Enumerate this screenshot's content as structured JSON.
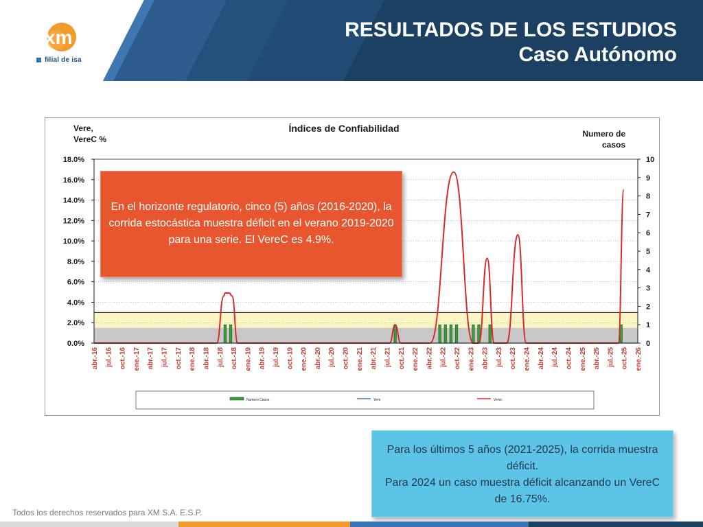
{
  "header": {
    "title_line1": "RESULTADOS DE LOS ESTUDIOS",
    "title_line2": "Caso Autónomo",
    "logo_text": "xm",
    "logo_sub": "filial de isa",
    "colors": {
      "dark": "#1b4062",
      "mid": "#2b5c8c",
      "light": "#3f78b0",
      "accent": "#f39a2c"
    }
  },
  "chart_data": {
    "type": "line",
    "title": "Índices de Confiabilidad",
    "ylabel_left_line1": "Vere,",
    "ylabel_left_line2": "VereC %",
    "ylabel_right_line1": "Numero de",
    "ylabel_right_line2": "casos",
    "ylim_left": [
      0,
      18
    ],
    "ylim_right": [
      0,
      10
    ],
    "left_ticks": [
      "0.0%",
      "2.0%",
      "4.0%",
      "6.0%",
      "8.0%",
      "10.0%",
      "12.0%",
      "14.0%",
      "16.0%",
      "18.0%"
    ],
    "right_ticks": [
      "0",
      "1",
      "2",
      "3",
      "4",
      "5",
      "6",
      "7",
      "8",
      "9",
      "10"
    ],
    "categories": [
      "abr.-16",
      "jul.-16",
      "oct.-16",
      "ene.-17",
      "abr.-17",
      "jul.-17",
      "oct.-17",
      "ene.-18",
      "abr.-18",
      "jul.-18",
      "oct.-18",
      "ene.-19",
      "abr.-19",
      "jul.-19",
      "oct.-19",
      "ene.-20",
      "abr.-20",
      "jul.-20",
      "oct.-20",
      "ene.-21",
      "abr.-21",
      "jul.-21",
      "oct.-21",
      "ene.-22",
      "abr.-22",
      "jul.-22",
      "oct.-22",
      "ene.-23",
      "abr.-23",
      "jul.-23",
      "oct.-23",
      "ene.-24",
      "abr.-24",
      "jul.-24",
      "oct.-24",
      "ene.-25",
      "abr.-25",
      "jul.-25",
      "oct.-25",
      "ene.-26"
    ],
    "grid": true,
    "reference_bands": [
      {
        "from": 0,
        "to": 1.5,
        "color": "#c8c8c8"
      },
      {
        "from": 1.5,
        "to": 3.0,
        "color": "#fbf5c4"
      }
    ],
    "series": [
      {
        "name": "Numero Casos",
        "type": "bar",
        "axis": "right",
        "color": "#3b9a3b",
        "points": [
          [
            47,
            1
          ],
          [
            49,
            1
          ],
          [
            108,
            1
          ],
          [
            124,
            1
          ],
          [
            126,
            1
          ],
          [
            128,
            1
          ],
          [
            130,
            1
          ],
          [
            136,
            1
          ],
          [
            138,
            1
          ],
          [
            142,
            1
          ],
          [
            189,
            1
          ]
        ]
      },
      {
        "name": "Vere",
        "type": "line",
        "axis": "left",
        "color": "#3a7cc4",
        "points": []
      },
      {
        "name": "Verec",
        "type": "line",
        "axis": "left",
        "color": "#d92b2b",
        "points": [
          [
            0,
            0
          ],
          [
            44,
            0
          ],
          [
            46.5,
            4.6
          ],
          [
            47,
            4.9
          ],
          [
            48.5,
            4.9
          ],
          [
            49.5,
            4.6
          ],
          [
            51.5,
            0
          ],
          [
            106,
            0
          ],
          [
            108,
            1.8
          ],
          [
            110,
            0
          ],
          [
            120.5,
            0
          ],
          [
            129,
            16.75
          ],
          [
            136,
            0
          ],
          [
            138,
            0
          ],
          [
            141,
            8.3
          ],
          [
            143.5,
            0
          ],
          [
            148,
            0
          ],
          [
            152,
            10.6
          ],
          [
            155,
            0
          ],
          [
            188,
            0
          ],
          [
            190,
            15.0
          ]
        ]
      }
    ],
    "legend": [
      "Numero Casos",
      "Vere",
      "Verec"
    ],
    "legend_position": "bottom"
  },
  "callouts": {
    "left": "En el horizonte regulatorio, cinco (5) años (2016-2020), la corrida estocástica muestra déficit en el verano 2019-2020 para una serie. El VereC es 4.9%.",
    "right_line1": "Para los últimos 5 años (2021-2025), la corrida muestra déficit.",
    "right_line2": "Para 2024 un caso muestra déficit alcanzando un VereC de 16.75%."
  },
  "footer": {
    "text": "Todos los derechos reservados para XM S.A. E.S.P.",
    "bar_colors": [
      "#d9d9d9",
      "#f39a2c",
      "#3a74b5",
      "#1b4062"
    ]
  }
}
